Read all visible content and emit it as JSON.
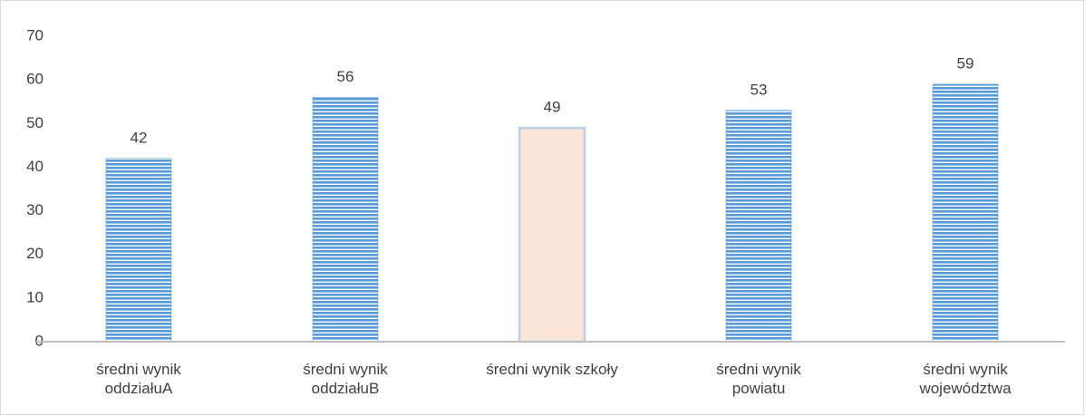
{
  "chart_data": {
    "type": "bar",
    "categories": [
      "średni wynik oddziałuA",
      "średni wynik oddziałuB",
      "średni wynik szkoły",
      "średni wynik powiatu",
      "średni wynik województwa"
    ],
    "values": [
      42,
      56,
      49,
      53,
      59
    ],
    "colors": [
      "#5b9bd5",
      "#5b9bd5",
      "#fbe5d6",
      "#5b9bd5",
      "#5b9bd5"
    ],
    "fill_styles": [
      "striped",
      "striped",
      "solid",
      "striped",
      "striped"
    ],
    "ylim": [
      0,
      70
    ],
    "yticks": [
      0,
      10,
      20,
      30,
      40,
      50,
      60,
      70
    ],
    "grid": false
  }
}
